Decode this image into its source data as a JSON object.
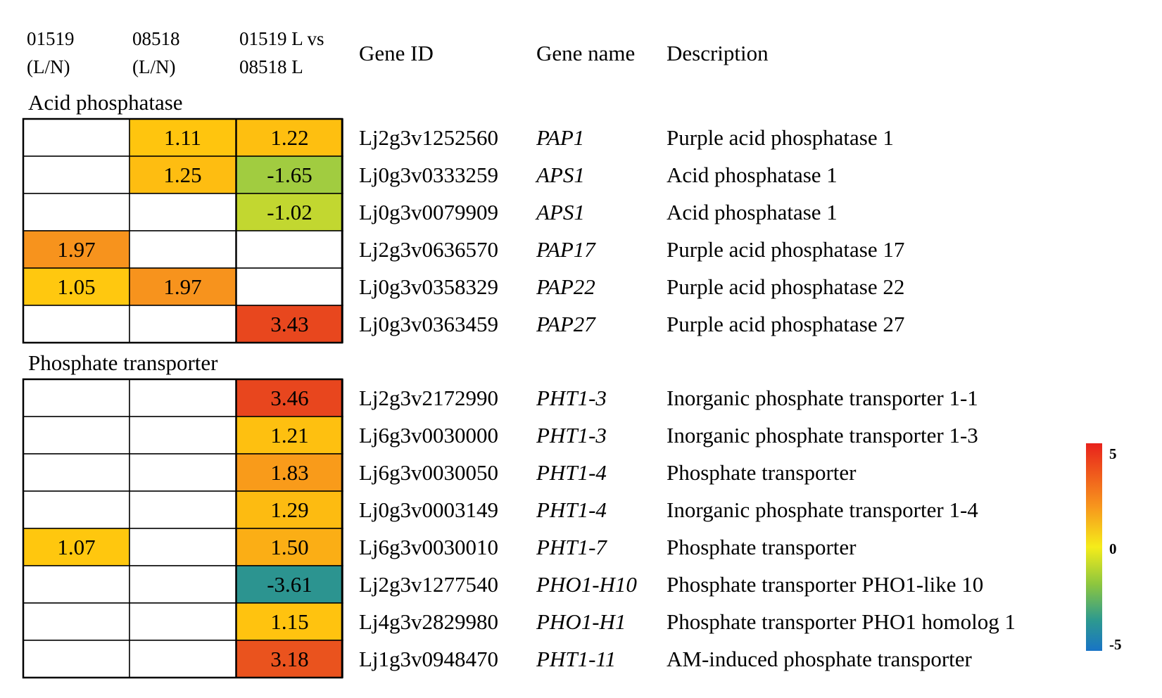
{
  "header": {
    "col1": [
      "01519",
      "(L/N)"
    ],
    "col2": [
      "08518",
      "(L/N)"
    ],
    "col3": [
      "01519 L vs",
      "08518 L"
    ],
    "gene_id": "Gene ID",
    "gene_name": "Gene name",
    "description": "Description"
  },
  "chart_data": {
    "type": "heatmap",
    "columns": [
      "01519 (L/N)",
      "08518 (L/N)",
      "01519 L vs 08518 L"
    ],
    "color_scale": {
      "min": -5,
      "mid": 0,
      "max": 5,
      "colors": [
        "#1f78c8",
        "#2d9a8a",
        "#b5d63a",
        "#f5e71a",
        "#ffc20e",
        "#f7941d",
        "#e8471c",
        "#e31a1c"
      ]
    },
    "groups": [
      {
        "name": "Acid phosphatase",
        "rows": [
          {
            "gene_id": "Lj2g3v1252560",
            "gene_name": "PAP1",
            "description": "Purple acid phosphatase 1",
            "values": [
              null,
              1.11,
              1.22
            ]
          },
          {
            "gene_id": "Lj0g3v0333259",
            "gene_name": "APS1",
            "description": "Acid phosphatase 1",
            "values": [
              null,
              1.25,
              -1.65
            ]
          },
          {
            "gene_id": "Lj0g3v0079909",
            "gene_name": "APS1",
            "description": "Acid phosphatase 1",
            "values": [
              null,
              null,
              -1.02
            ]
          },
          {
            "gene_id": "Lj2g3v0636570",
            "gene_name": "PAP17",
            "description": "Purple acid phosphatase 17",
            "values": [
              1.97,
              null,
              null
            ]
          },
          {
            "gene_id": "Lj0g3v0358329",
            "gene_name": "PAP22",
            "description": "Purple acid phosphatase 22",
            "values": [
              1.05,
              1.97,
              null
            ]
          },
          {
            "gene_id": "Lj0g3v0363459",
            "gene_name": "PAP27",
            "description": "Purple acid phosphatase 27",
            "values": [
              null,
              null,
              3.43
            ]
          }
        ]
      },
      {
        "name": "Phosphate transporter",
        "rows": [
          {
            "gene_id": "Lj2g3v2172990",
            "gene_name": "PHT1-3",
            "description": "Inorganic phosphate transporter 1-1",
            "values": [
              null,
              null,
              3.46
            ]
          },
          {
            "gene_id": "Lj6g3v0030000",
            "gene_name": "PHT1-3",
            "description": "Inorganic phosphate transporter 1-3",
            "values": [
              null,
              null,
              1.21
            ]
          },
          {
            "gene_id": "Lj6g3v0030050",
            "gene_name": "PHT1-4",
            "description": "Phosphate transporter",
            "values": [
              null,
              null,
              1.83
            ]
          },
          {
            "gene_id": "Lj0g3v0003149",
            "gene_name": "PHT1-4",
            "description": "Inorganic phosphate transporter 1-4",
            "values": [
              null,
              null,
              1.29
            ]
          },
          {
            "gene_id": "Lj6g3v0030010",
            "gene_name": "PHT1-7",
            "description": "Phosphate transporter",
            "values": [
              1.07,
              null,
              1.5
            ]
          },
          {
            "gene_id": "Lj2g3v1277540",
            "gene_name": "PHO1-H10",
            "description": "Phosphate transporter PHO1-like 10",
            "values": [
              null,
              null,
              -3.61
            ]
          },
          {
            "gene_id": "Lj4g3v2829980",
            "gene_name": "PHO1-H1",
            "description": "Phosphate transporter PHO1 homolog 1",
            "values": [
              null,
              null,
              1.15
            ]
          },
          {
            "gene_id": "Lj1g3v0948470",
            "gene_name": "PHT1-11",
            "description": "AM-induced phosphate transporter",
            "values": [
              null,
              null,
              3.18
            ]
          }
        ]
      }
    ],
    "legend": {
      "max_label": "5",
      "mid_label": "0",
      "min_label": "-5"
    }
  }
}
